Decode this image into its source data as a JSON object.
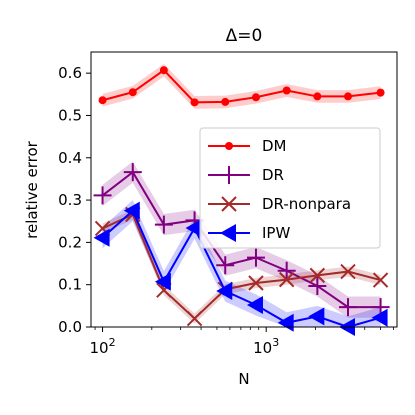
{
  "chart_data": {
    "type": "line",
    "title": "Δ=0",
    "xlabel": "N",
    "ylabel": "relative error",
    "x_scale": "log",
    "xlim": [
      85,
      6300
    ],
    "ylim": [
      0,
      0.65
    ],
    "grid": false,
    "legend_position": "right",
    "x_ticks": [
      {
        "value": 100,
        "base": "10",
        "exp": "2"
      },
      {
        "value": 1000,
        "base": "10",
        "exp": "3"
      }
    ],
    "y_ticks": [
      {
        "value": 0.0,
        "label": "0.0"
      },
      {
        "value": 0.1,
        "label": "0.1"
      },
      {
        "value": 0.2,
        "label": "0.2"
      },
      {
        "value": 0.3,
        "label": "0.3"
      },
      {
        "value": 0.4,
        "label": "0.4"
      },
      {
        "value": 0.5,
        "label": "0.5"
      },
      {
        "value": 0.6,
        "label": "0.6"
      }
    ],
    "x": [
      100,
      153,
      237,
      365,
      562,
      866,
      1334,
      2054,
      3162,
      5000
    ],
    "series": [
      {
        "name": "DM",
        "color": "#ff0000",
        "marker": "circle",
        "values": [
          0.536,
          0.555,
          0.607,
          0.531,
          0.532,
          0.543,
          0.559,
          0.545,
          0.545,
          0.554
        ],
        "band": 0.015
      },
      {
        "name": "DR",
        "color": "#800080",
        "marker": "plus",
        "values": [
          0.311,
          0.366,
          0.242,
          0.252,
          0.146,
          0.164,
          0.133,
          0.097,
          0.047,
          0.047
        ],
        "band": 0.025
      },
      {
        "name": "DR-nonpara",
        "color": "#a52a2a",
        "marker": "x",
        "values": [
          0.233,
          0.266,
          0.087,
          0.02,
          0.089,
          0.104,
          0.112,
          0.122,
          0.131,
          0.111
        ],
        "band": 0.012
      },
      {
        "name": "IPW",
        "color": "#0000ff",
        "marker": "triangle-left",
        "values": [
          0.211,
          0.275,
          0.107,
          0.234,
          0.085,
          0.052,
          0.01,
          0.025,
          0.0,
          0.022
        ],
        "band": 0.025
      }
    ]
  }
}
